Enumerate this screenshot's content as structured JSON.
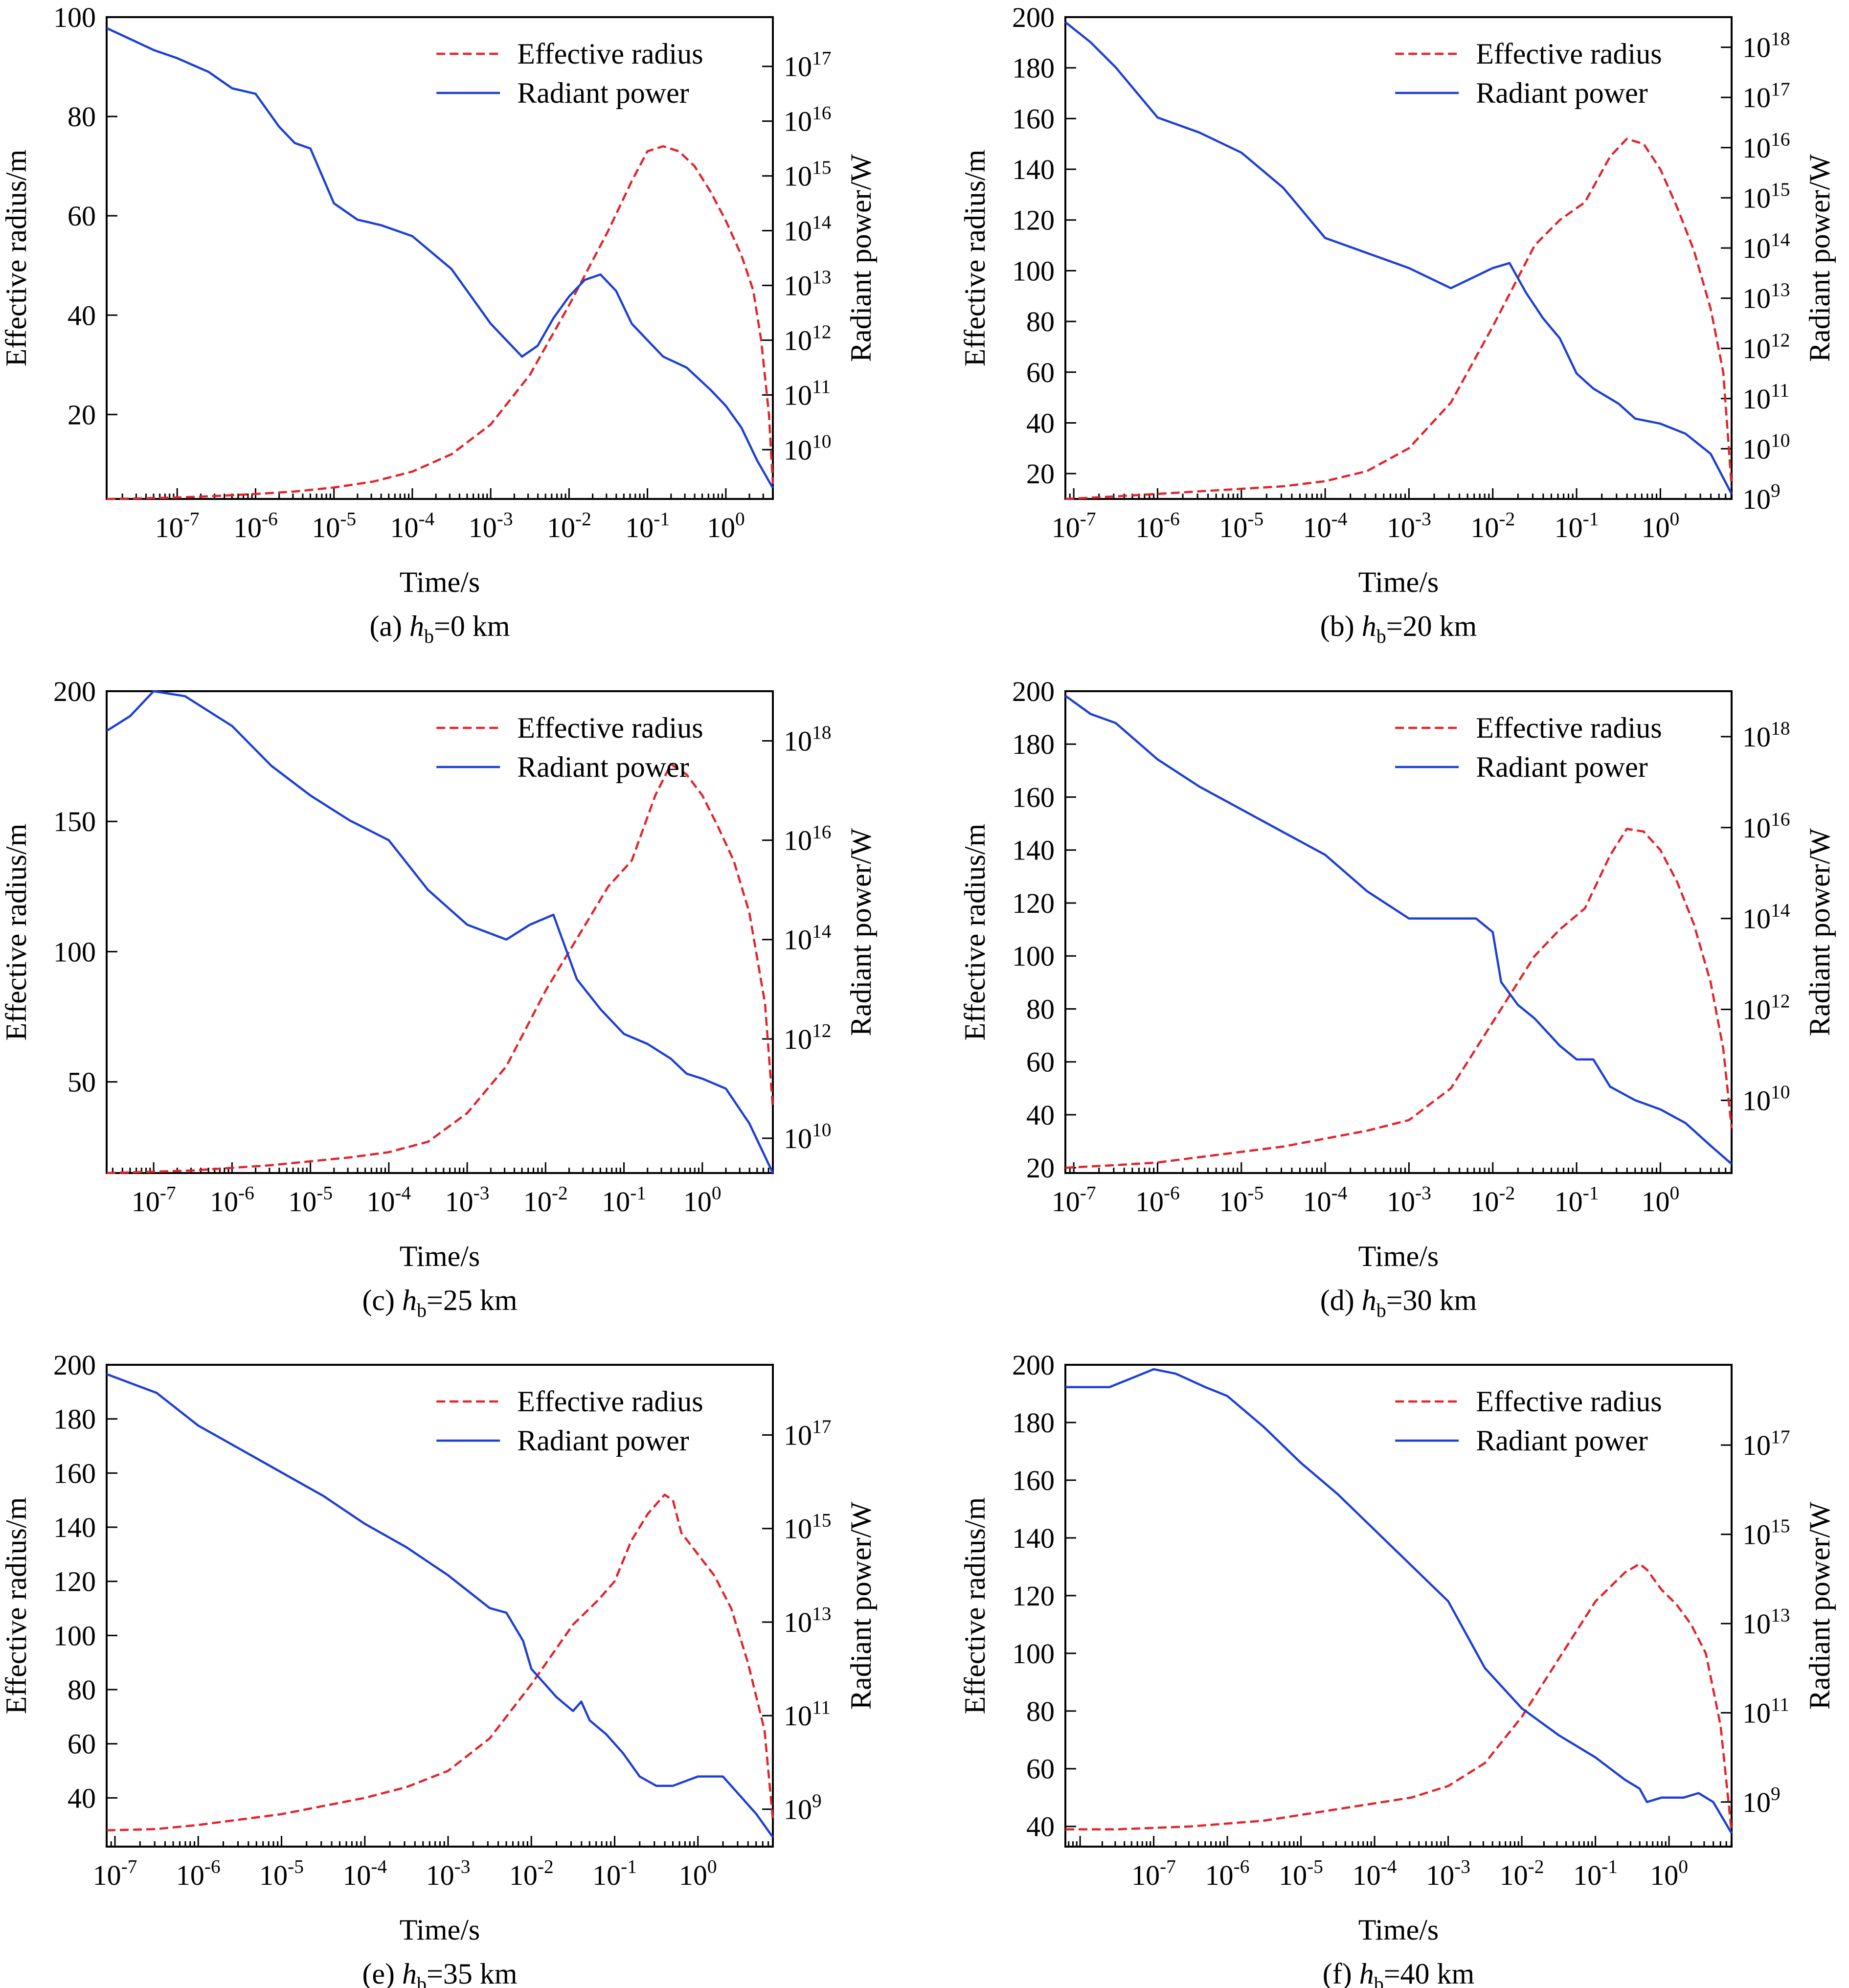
{
  "figure": {
    "colors": {
      "effective_radius": "#e0242a",
      "radiant_power": "#1c3fd4",
      "axis": "#000000",
      "background": "#ffffff"
    },
    "icons": {
      "effective_radius_legend": "red-dashed-line",
      "radiant_power_legend": "blue-solid-line"
    }
  },
  "chart_data": [
    {
      "type": "line",
      "caption": {
        "prefix": "(a) ",
        "var": "h",
        "sub": "b",
        "suffix": "=0 km"
      },
      "xlabel": "Time/s",
      "ylabel": "Effective radius/m",
      "y2label": "Radiant power/W",
      "xscale": "log",
      "xlim_exp": [
        -7.9,
        0.6
      ],
      "xticks_exp": [
        -7,
        -6,
        -5,
        -4,
        -3,
        -2,
        -1,
        0
      ],
      "ylim": [
        3,
        100
      ],
      "yticks": [
        20,
        40,
        60,
        80,
        100
      ],
      "y2scale": "log",
      "y2lim_exp": [
        9.1,
        17.9
      ],
      "y2ticks_exp": [
        10,
        11,
        12,
        13,
        14,
        15,
        16,
        17
      ],
      "legend": {
        "position": "top-right",
        "entries": [
          "Effective radius",
          "Radiant power"
        ]
      },
      "series": [
        {
          "name": "Effective radius",
          "axis": "left",
          "style": "dashed",
          "x_exp": [
            -7.9,
            -7.5,
            -7.0,
            -6.5,
            -6.0,
            -5.5,
            -5.0,
            -4.5,
            -4.0,
            -3.5,
            -3.0,
            -2.5,
            -2.0,
            -1.5,
            -1.2,
            -1.0,
            -0.8,
            -0.6,
            -0.4,
            -0.2,
            0.0,
            0.2,
            0.35,
            0.45,
            0.55,
            0.6
          ],
          "values": [
            3,
            3.1,
            3.3,
            3.6,
            4,
            4.5,
            5.3,
            6.5,
            8.5,
            12,
            18,
            28,
            42,
            57,
            67,
            73,
            74,
            73,
            70,
            65,
            59,
            52,
            45,
            35,
            20,
            6
          ]
        },
        {
          "name": "Radiant power",
          "axis": "right",
          "style": "solid",
          "x_exp": [
            -7.9,
            -7.6,
            -7.3,
            -7.0,
            -6.6,
            -6.3,
            -6.0,
            -5.7,
            -5.5,
            -5.3,
            -5.0,
            -4.7,
            -4.4,
            -4.0,
            -3.5,
            -3.0,
            -2.8,
            -2.6,
            -2.4,
            -2.2,
            -2.0,
            -1.8,
            -1.6,
            -1.4,
            -1.2,
            -1.0,
            -0.8,
            -0.5,
            -0.2,
            0.0,
            0.2,
            0.4,
            0.6
          ],
          "values_exp": [
            17.7,
            17.5,
            17.3,
            17.15,
            16.9,
            16.6,
            16.5,
            15.9,
            15.6,
            15.5,
            14.5,
            14.2,
            14.1,
            13.9,
            13.3,
            12.3,
            12.0,
            11.7,
            11.9,
            12.4,
            12.8,
            13.1,
            13.2,
            12.9,
            12.3,
            12.0,
            11.7,
            11.5,
            11.1,
            10.8,
            10.4,
            9.8,
            9.3
          ]
        }
      ]
    },
    {
      "type": "line",
      "caption": {
        "prefix": "(b) ",
        "var": "h",
        "sub": "b",
        "suffix": "=20 km"
      },
      "xlabel": "Time/s",
      "ylabel": "Effective radius/m",
      "y2label": "Radiant power/W",
      "xscale": "log",
      "xlim_exp": [
        -7.1,
        0.85
      ],
      "xticks_exp": [
        -7,
        -6,
        -5,
        -4,
        -3,
        -2,
        -1,
        0
      ],
      "ylim": [
        10,
        200
      ],
      "yticks": [
        20,
        40,
        60,
        80,
        100,
        120,
        140,
        160,
        180,
        200
      ],
      "y2scale": "log",
      "y2lim_exp": [
        9,
        18.6
      ],
      "y2ticks_exp": [
        9,
        10,
        11,
        12,
        13,
        14,
        15,
        16,
        17,
        18
      ],
      "legend": {
        "position": "top-right",
        "entries": [
          "Effective radius",
          "Radiant power"
        ]
      },
      "series": [
        {
          "name": "Effective radius",
          "axis": "left",
          "style": "dashed",
          "x_exp": [
            -7.1,
            -6.5,
            -6.0,
            -5.5,
            -5.0,
            -4.5,
            -4.0,
            -3.5,
            -3.0,
            -2.5,
            -2.0,
            -1.5,
            -1.2,
            -0.9,
            -0.6,
            -0.4,
            -0.2,
            0.0,
            0.2,
            0.4,
            0.6,
            0.75,
            0.85
          ],
          "values": [
            10,
            11,
            12,
            13,
            14,
            15,
            17,
            21,
            30,
            48,
            78,
            110,
            120,
            127,
            145,
            152,
            150,
            140,
            125,
            108,
            85,
            60,
            15
          ]
        },
        {
          "name": "Radiant power",
          "axis": "right",
          "style": "solid",
          "x_exp": [
            -7.1,
            -6.8,
            -6.5,
            -6.0,
            -5.5,
            -5.0,
            -4.5,
            -4.0,
            -3.5,
            -3.0,
            -2.5,
            -2.0,
            -1.8,
            -1.6,
            -1.4,
            -1.2,
            -1.0,
            -0.8,
            -0.5,
            -0.3,
            0.0,
            0.3,
            0.6,
            0.85
          ],
          "values_exp": [
            18.5,
            18.1,
            17.6,
            16.6,
            16.3,
            15.9,
            15.2,
            14.2,
            13.9,
            13.6,
            13.2,
            13.6,
            13.7,
            13.1,
            12.6,
            12.2,
            11.5,
            11.2,
            10.9,
            10.6,
            10.5,
            10.3,
            9.9,
            9.1
          ]
        }
      ]
    },
    {
      "type": "line",
      "caption": {
        "prefix": "(c) ",
        "var": "h",
        "sub": "b",
        "suffix": "=25 km"
      },
      "xlabel": "Time/s",
      "ylabel": "Effective radius/m",
      "y2label": "Radiant power/W",
      "xscale": "log",
      "xlim_exp": [
        -7.6,
        0.9
      ],
      "xticks_exp": [
        -7,
        -6,
        -5,
        -4,
        -3,
        -2,
        -1,
        0
      ],
      "ylim": [
        15,
        200
      ],
      "yticks": [
        50,
        100,
        150,
        200
      ],
      "y2scale": "log",
      "y2lim_exp": [
        9.3,
        19.0
      ],
      "y2ticks_exp": [
        10,
        12,
        14,
        16,
        18
      ],
      "legend": {
        "position": "top-right",
        "entries": [
          "Effective radius",
          "Radiant power"
        ]
      },
      "series": [
        {
          "name": "Effective radius",
          "axis": "left",
          "style": "dashed",
          "x_exp": [
            -7.6,
            -7.0,
            -6.5,
            -6.0,
            -5.5,
            -5.0,
            -4.5,
            -4.0,
            -3.5,
            -3.0,
            -2.5,
            -2.0,
            -1.5,
            -1.2,
            -0.9,
            -0.6,
            -0.4,
            -0.2,
            0.0,
            0.2,
            0.4,
            0.6,
            0.8,
            0.9
          ],
          "values": [
            15,
            15.5,
            16,
            17,
            18,
            19.5,
            21,
            23,
            27,
            38,
            56,
            85,
            110,
            125,
            135,
            160,
            172,
            168,
            160,
            148,
            135,
            115,
            80,
            40
          ]
        },
        {
          "name": "Radiant power",
          "axis": "right",
          "style": "solid",
          "x_exp": [
            -7.6,
            -7.3,
            -7.0,
            -6.6,
            -6.3,
            -6.0,
            -5.5,
            -5.0,
            -4.5,
            -4.0,
            -3.5,
            -3.0,
            -2.5,
            -2.2,
            -1.9,
            -1.6,
            -1.3,
            -1.0,
            -0.7,
            -0.4,
            -0.2,
            0.0,
            0.3,
            0.6,
            0.9
          ],
          "values_exp": [
            18.2,
            18.5,
            19.0,
            18.9,
            18.6,
            18.3,
            17.5,
            16.9,
            16.4,
            16.0,
            15.0,
            14.3,
            14.0,
            14.3,
            14.5,
            13.2,
            12.6,
            12.1,
            11.9,
            11.6,
            11.3,
            11.2,
            11.0,
            10.3,
            9.3
          ]
        }
      ]
    },
    {
      "type": "line",
      "caption": {
        "prefix": "(d) ",
        "var": "h",
        "sub": "b",
        "suffix": "=30 km"
      },
      "xlabel": "Time/s",
      "ylabel": "Effective radius/m",
      "y2label": "Radiant power/W",
      "xscale": "log",
      "xlim_exp": [
        -7.1,
        0.85
      ],
      "xticks_exp": [
        -7,
        -6,
        -5,
        -4,
        -3,
        -2,
        -1,
        0
      ],
      "ylim": [
        18,
        200
      ],
      "yticks": [
        20,
        40,
        60,
        80,
        100,
        120,
        140,
        160,
        180,
        200
      ],
      "y2scale": "log",
      "y2lim_exp": [
        8.4,
        19.0
      ],
      "y2ticks_exp": [
        10,
        12,
        14,
        16,
        18
      ],
      "legend": {
        "position": "top-right",
        "entries": [
          "Effective radius",
          "Radiant power"
        ]
      },
      "series": [
        {
          "name": "Effective radius",
          "axis": "left",
          "style": "dashed",
          "x_exp": [
            -7.1,
            -6.5,
            -6.0,
            -5.5,
            -5.0,
            -4.5,
            -4.0,
            -3.5,
            -3.0,
            -2.5,
            -2.0,
            -1.5,
            -1.2,
            -0.9,
            -0.6,
            -0.4,
            -0.2,
            0.0,
            0.2,
            0.4,
            0.6,
            0.75,
            0.85
          ],
          "values": [
            20,
            21,
            22,
            24,
            26,
            28,
            31,
            34,
            38,
            50,
            75,
            100,
            110,
            118,
            138,
            148,
            147,
            140,
            128,
            112,
            90,
            65,
            35
          ]
        },
        {
          "name": "Radiant power",
          "axis": "right",
          "style": "solid",
          "x_exp": [
            -7.1,
            -6.8,
            -6.5,
            -6.0,
            -5.5,
            -5.0,
            -4.5,
            -4.0,
            -3.5,
            -3.0,
            -2.5,
            -2.2,
            -2.0,
            -1.9,
            -1.7,
            -1.5,
            -1.2,
            -1.0,
            -0.8,
            -0.6,
            -0.3,
            0.0,
            0.3,
            0.6,
            0.85
          ],
          "values_exp": [
            18.9,
            18.5,
            18.3,
            17.5,
            16.9,
            16.4,
            15.9,
            15.4,
            14.6,
            14.0,
            14.0,
            14.0,
            13.7,
            12.6,
            12.1,
            11.8,
            11.2,
            10.9,
            10.9,
            10.3,
            10.0,
            9.8,
            9.5,
            9.0,
            8.6
          ]
        }
      ]
    },
    {
      "type": "line",
      "caption": {
        "prefix": "(e) ",
        "var": "h",
        "sub": "b",
        "suffix": "=35 km"
      },
      "xlabel": "Time/s",
      "ylabel": "Effective radius/m",
      "y2label": "Radiant power/W",
      "xscale": "log",
      "xlim_exp": [
        -7.1,
        0.9
      ],
      "xticks_exp": [
        -7,
        -6,
        -5,
        -4,
        -3,
        -2,
        -1,
        0
      ],
      "ylim": [
        22,
        200
      ],
      "yticks": [
        40,
        60,
        80,
        100,
        120,
        140,
        160,
        180,
        200
      ],
      "y2scale": "log",
      "y2lim_exp": [
        8.2,
        18.5
      ],
      "y2ticks_exp": [
        9,
        11,
        13,
        15,
        17
      ],
      "legend": {
        "position": "top-right",
        "entries": [
          "Effective radius",
          "Radiant power"
        ]
      },
      "series": [
        {
          "name": "Effective radius",
          "axis": "left",
          "style": "dashed",
          "x_exp": [
            -7.1,
            -6.5,
            -6.0,
            -5.5,
            -5.0,
            -4.5,
            -4.0,
            -3.5,
            -3.0,
            -2.5,
            -2.0,
            -1.5,
            -1.2,
            -1.0,
            -0.8,
            -0.6,
            -0.4,
            -0.3,
            -0.2,
            0.0,
            0.2,
            0.4,
            0.6,
            0.8,
            0.9
          ],
          "values": [
            28,
            28.5,
            30,
            32,
            34,
            37,
            40,
            44,
            50,
            62,
            82,
            104,
            113,
            120,
            135,
            145,
            152,
            150,
            138,
            130,
            122,
            110,
            90,
            65,
            32
          ]
        },
        {
          "name": "Radiant power",
          "axis": "right",
          "style": "solid",
          "x_exp": [
            -7.1,
            -6.5,
            -6.0,
            -5.5,
            -5.0,
            -4.5,
            -4.0,
            -3.5,
            -3.0,
            -2.5,
            -2.3,
            -2.1,
            -2.0,
            -1.7,
            -1.5,
            -1.4,
            -1.3,
            -1.1,
            -0.9,
            -0.7,
            -0.5,
            -0.3,
            0.0,
            0.3,
            0.5,
            0.7,
            0.9
          ],
          "values_exp": [
            18.3,
            17.9,
            17.2,
            16.7,
            16.2,
            15.7,
            15.1,
            14.6,
            14.0,
            13.3,
            13.2,
            12.6,
            12.0,
            11.4,
            11.1,
            11.3,
            10.9,
            10.6,
            10.2,
            9.7,
            9.5,
            9.5,
            9.7,
            9.7,
            9.3,
            8.9,
            8.4
          ]
        }
      ]
    },
    {
      "type": "line",
      "caption": {
        "prefix": "(f) ",
        "var": "h",
        "sub": "b",
        "suffix": "=40 km"
      },
      "xlabel": "Time/s",
      "ylabel": "Effective radius/m",
      "y2label": "Radiant power/W",
      "xscale": "log",
      "xlim_exp": [
        -8.2,
        0.85
      ],
      "xticks_exp": [
        -7,
        -6,
        -5,
        -4,
        -3,
        -2,
        -1,
        0
      ],
      "ylim": [
        33,
        200
      ],
      "yticks": [
        40,
        60,
        80,
        100,
        120,
        140,
        160,
        180,
        200
      ],
      "y2scale": "log",
      "y2lim_exp": [
        8.0,
        18.8
      ],
      "y2ticks_exp": [
        9,
        11,
        13,
        15,
        17
      ],
      "legend": {
        "position": "top-right",
        "entries": [
          "Effective radius",
          "Radiant power"
        ]
      },
      "series": [
        {
          "name": "Effective radius",
          "axis": "left",
          "style": "dashed",
          "x_exp": [
            -8.2,
            -7.5,
            -7.0,
            -6.5,
            -6.0,
            -5.5,
            -5.0,
            -4.5,
            -4.0,
            -3.5,
            -3.0,
            -2.5,
            -2.0,
            -1.5,
            -1.0,
            -0.6,
            -0.4,
            -0.3,
            -0.1,
            0.1,
            0.3,
            0.5,
            0.7,
            0.85
          ],
          "values": [
            39,
            39,
            39.5,
            40,
            41,
            42,
            44,
            46,
            48,
            50,
            54,
            62,
            78,
            98,
            118,
            128,
            131,
            129,
            122,
            117,
            110,
            100,
            75,
            38
          ]
        },
        {
          "name": "Radiant power",
          "axis": "right",
          "style": "solid",
          "x_exp": [
            -8.2,
            -7.6,
            -7.3,
            -7.0,
            -6.7,
            -6.3,
            -6.0,
            -5.5,
            -5.0,
            -4.5,
            -4.0,
            -3.5,
            -3.0,
            -2.7,
            -2.5,
            -2.0,
            -1.5,
            -1.0,
            -0.6,
            -0.4,
            -0.3,
            -0.1,
            0.2,
            0.4,
            0.6,
            0.85
          ],
          "values_exp": [
            18.3,
            18.3,
            18.5,
            18.7,
            18.6,
            18.3,
            18.1,
            17.4,
            16.6,
            15.9,
            15.1,
            14.3,
            13.5,
            12.6,
            12.0,
            11.1,
            10.5,
            10.0,
            9.5,
            9.3,
            9.0,
            9.1,
            9.1,
            9.2,
            9.0,
            8.3
          ]
        }
      ]
    }
  ]
}
